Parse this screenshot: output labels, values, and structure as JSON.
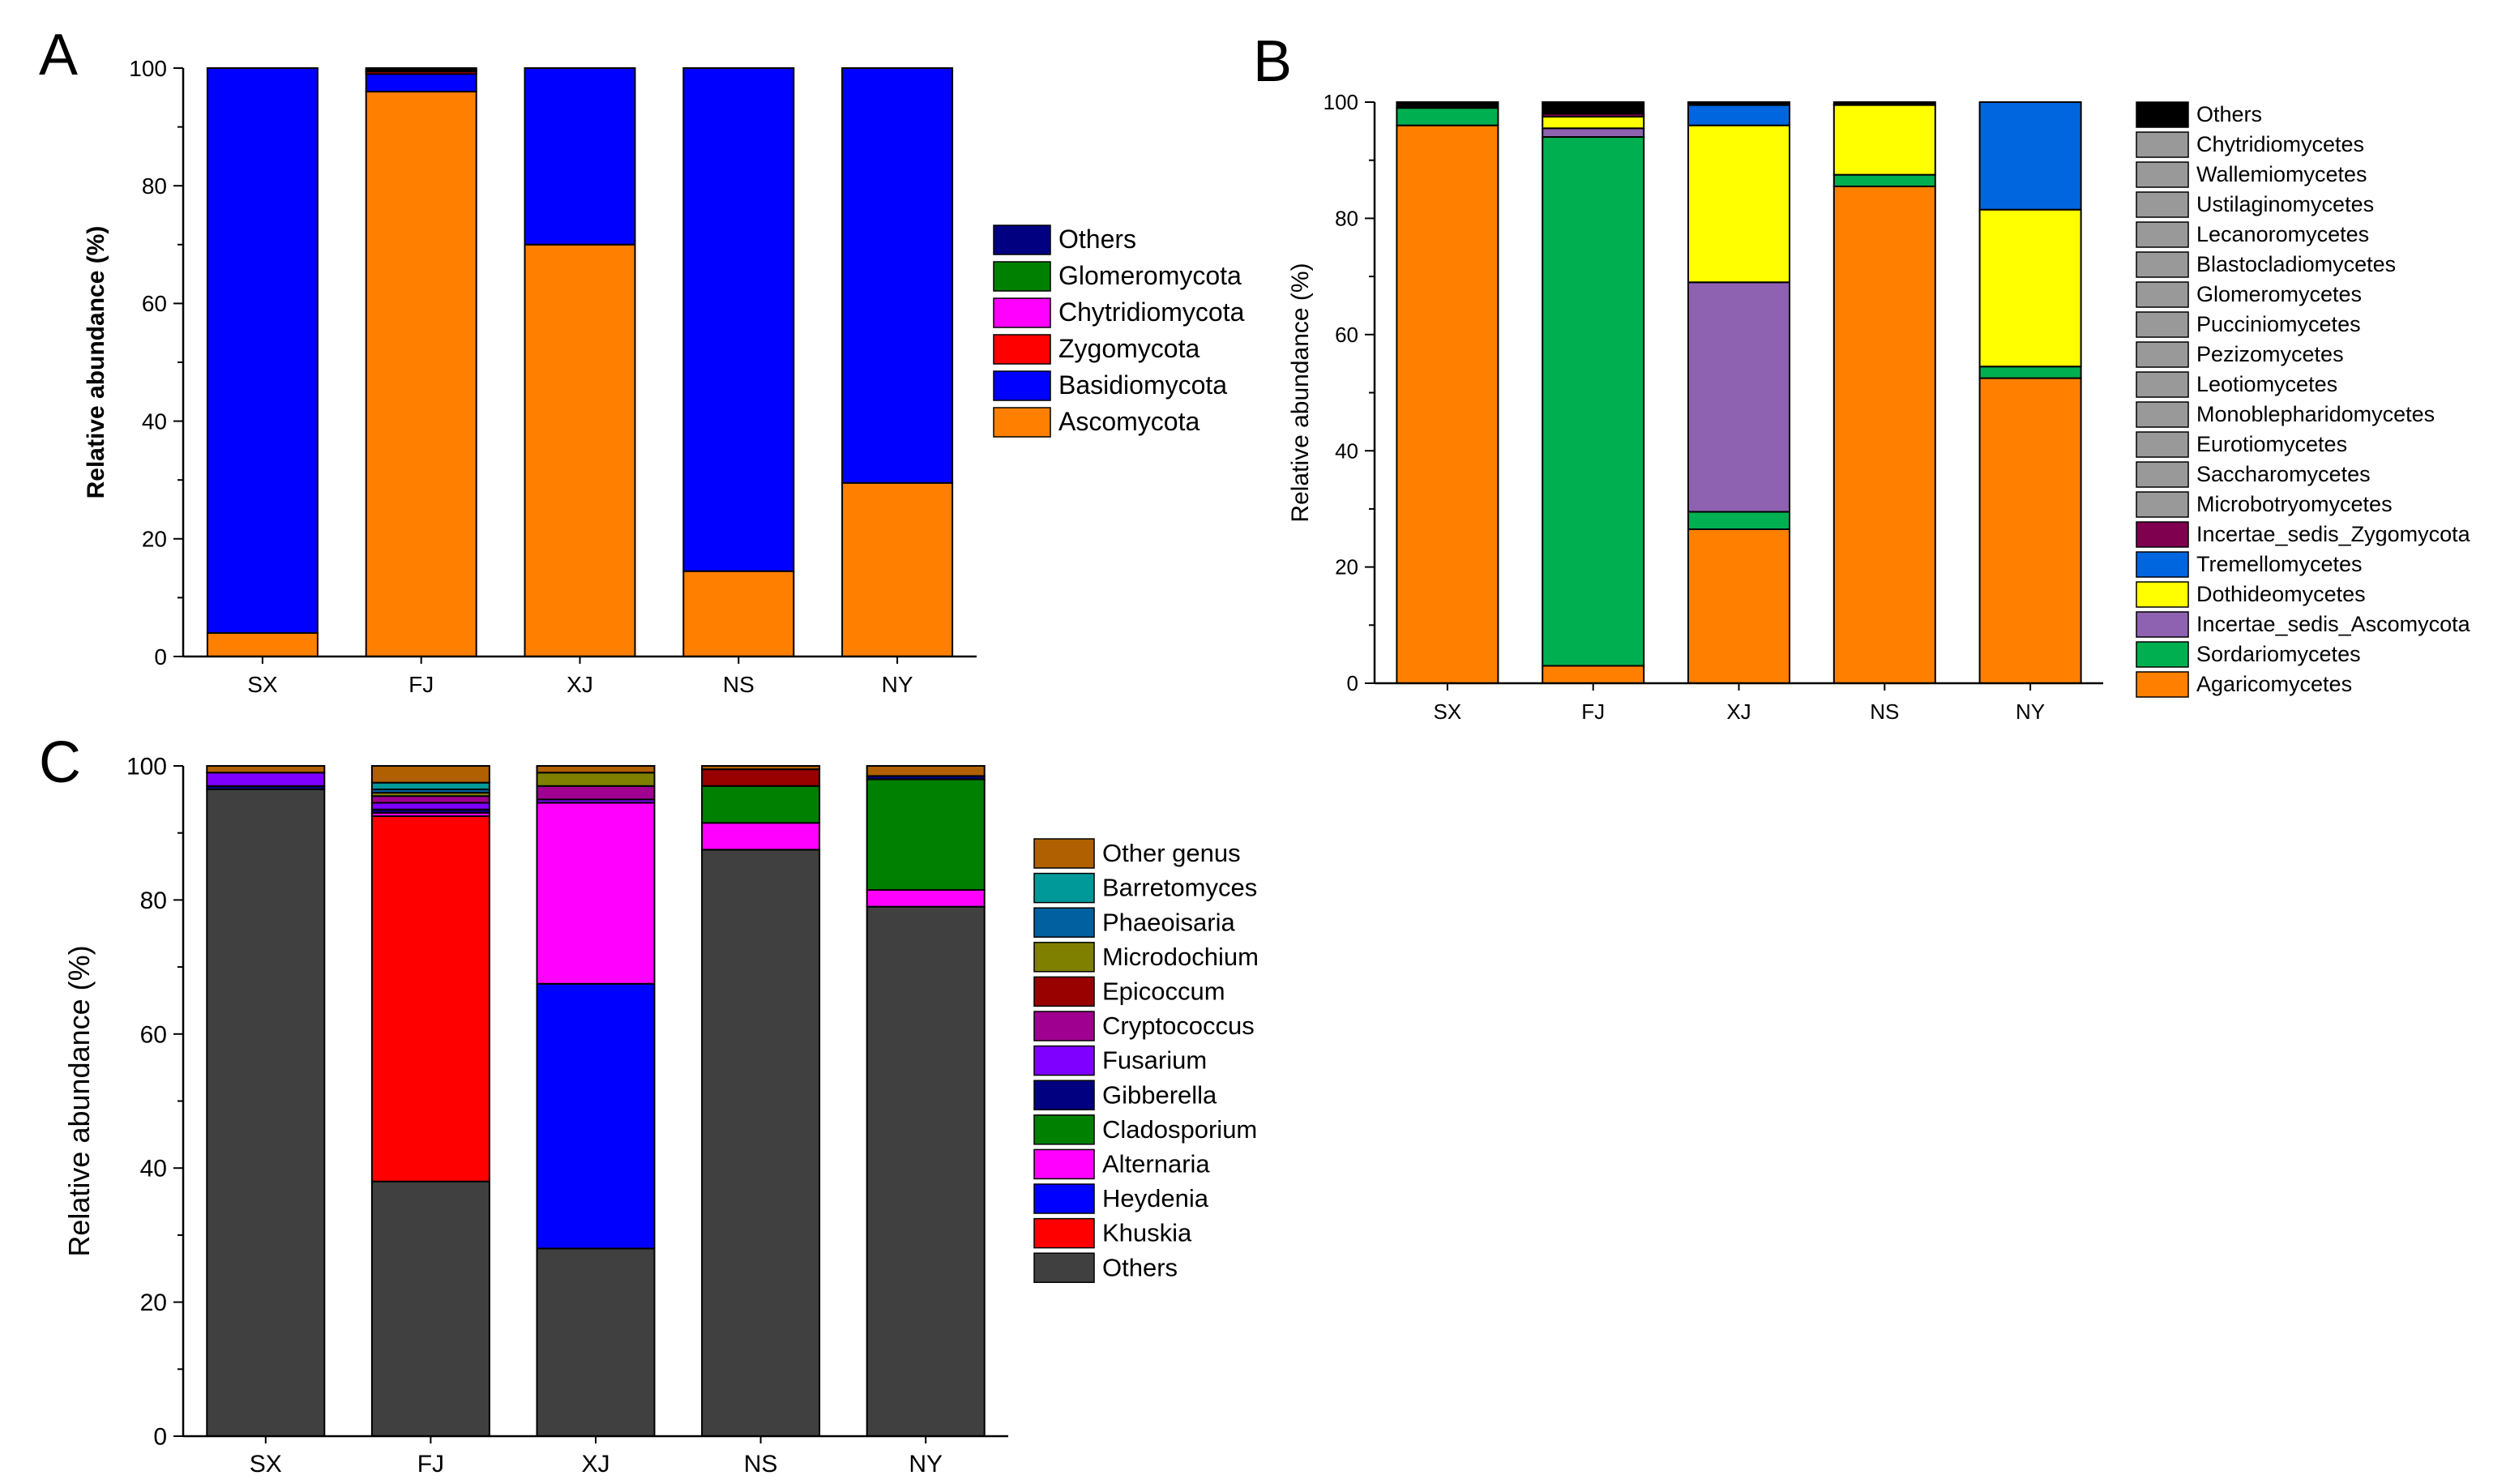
{
  "chart_data": [
    {
      "type": "bar",
      "stacked": true,
      "panel_label": "A",
      "title": "",
      "xlabel": "",
      "ylabel": "Relative abundance (%)",
      "ylim": [
        0,
        100
      ],
      "yticks": [
        0,
        20,
        40,
        60,
        80,
        100
      ],
      "categories": [
        "SX",
        "FJ",
        "XJ",
        "NS",
        "NY"
      ],
      "legend_order": [
        "Others",
        "Glomeromycota",
        "Chytridiomycota",
        "Zygomycota",
        "Basidiomycota",
        "Ascomycota"
      ],
      "series": [
        {
          "name": "Ascomycota",
          "color": "#FF8000",
          "values": [
            4,
            96,
            70,
            14.5,
            29.5
          ]
        },
        {
          "name": "Basidiomycota",
          "color": "#0000FF",
          "values": [
            96,
            3,
            30,
            85.5,
            70.5
          ]
        },
        {
          "name": "Zygomycota",
          "color": "#FF0000",
          "values": [
            0,
            0.4,
            0,
            0,
            0
          ]
        },
        {
          "name": "Chytridiomycota",
          "color": "#FF00FF",
          "values": [
            0,
            0.2,
            0,
            0,
            0
          ]
        },
        {
          "name": "Glomeromycota",
          "color": "#008000",
          "values": [
            0,
            0.2,
            0,
            0,
            0
          ]
        },
        {
          "name": "Others",
          "color": "#000080",
          "values": [
            0,
            0.2,
            0,
            0,
            0
          ]
        }
      ]
    },
    {
      "type": "bar",
      "stacked": true,
      "panel_label": "B",
      "title": "",
      "xlabel": "",
      "ylabel": "Relative abundance (%)",
      "ylim": [
        0,
        100
      ],
      "yticks": [
        0,
        20,
        40,
        60,
        80,
        100
      ],
      "categories": [
        "SX",
        "FJ",
        "XJ",
        "NS",
        "NY"
      ],
      "legend_order": [
        "Others",
        "Chytridiomycetes",
        "Wallemiomycetes",
        "Ustilaginomycetes",
        "Lecanoromycetes",
        "Blastocladiomycetes",
        "Glomeromycetes",
        "Pucciniomycetes",
        "Pezizomycetes",
        "Leotiomycetes",
        "Monoblepharidomycetes",
        "Eurotiomycetes",
        "Saccharomycetes",
        "Microbotryomycetes",
        "Incertae_sedis_Zygomycota",
        "Tremellomycetes",
        "Dothideomycetes",
        "Incertae_sedis_Ascomycota",
        "Sordariomycetes",
        "Agaricomycetes"
      ],
      "series": [
        {
          "name": "Agaricomycetes",
          "color": "#FF8000",
          "values": [
            96,
            3,
            26.5,
            85.5,
            52.5
          ]
        },
        {
          "name": "Sordariomycetes",
          "color": "#00B050",
          "values": [
            3,
            91,
            3,
            2,
            2
          ]
        },
        {
          "name": "Incertae_sedis_Ascomycota",
          "color": "#8E62B0",
          "values": [
            0,
            1.5,
            39.5,
            0,
            0
          ]
        },
        {
          "name": "Dothideomycetes",
          "color": "#FFFF00",
          "values": [
            0,
            2,
            27,
            12,
            27
          ]
        },
        {
          "name": "Tremellomycetes",
          "color": "#0066E0",
          "values": [
            0,
            0,
            3.5,
            0,
            18.5
          ]
        },
        {
          "name": "Incertae_sedis_Zygomycota",
          "color": "#800050",
          "values": [
            0,
            0.5,
            0,
            0,
            0
          ]
        },
        {
          "name": "Others",
          "color": "#000000",
          "values": [
            1,
            2,
            0.5,
            0.5,
            0
          ]
        }
      ]
    },
    {
      "type": "bar",
      "stacked": true,
      "panel_label": "C",
      "title": "",
      "xlabel": "",
      "ylabel": "Relative abundance (%)",
      "ylim": [
        0,
        100
      ],
      "yticks": [
        0,
        20,
        40,
        60,
        80,
        100
      ],
      "categories": [
        "SX",
        "FJ",
        "XJ",
        "NS",
        "NY"
      ],
      "legend_order": [
        "Other genus",
        "Barretomyces",
        "Phaeoisaria",
        "Microdochium",
        "Epicoccum",
        "Cryptococcus",
        "Fusarium",
        "Gibberella",
        "Cladosporium",
        "Alternaria",
        "Heydenia",
        "Khuskia",
        "Others"
      ],
      "series": [
        {
          "name": "Others",
          "color": "#404040",
          "values": [
            96.5,
            38,
            28,
            87.5,
            79
          ]
        },
        {
          "name": "Khuskia",
          "color": "#FF0000",
          "values": [
            0,
            54.5,
            0,
            0,
            0
          ]
        },
        {
          "name": "Heydenia",
          "color": "#0000FF",
          "values": [
            0,
            0,
            39.5,
            0,
            0
          ]
        },
        {
          "name": "Alternaria",
          "color": "#FF00FF",
          "values": [
            0,
            0.5,
            27,
            4,
            2.5
          ]
        },
        {
          "name": "Cladosporium",
          "color": "#008000",
          "values": [
            0,
            0,
            0,
            5.5,
            16.5
          ]
        },
        {
          "name": "Gibberella",
          "color": "#000080",
          "values": [
            0.5,
            0.5,
            0,
            0,
            0.5
          ]
        },
        {
          "name": "Fusarium",
          "color": "#8000FF",
          "values": [
            2,
            1,
            0.5,
            0,
            0
          ]
        },
        {
          "name": "Cryptococcus",
          "color": "#A0008F",
          "values": [
            0,
            1,
            2,
            0,
            0
          ]
        },
        {
          "name": "Epicoccum",
          "color": "#990000",
          "values": [
            0,
            0,
            0,
            2.5,
            0
          ]
        },
        {
          "name": "Microdochium",
          "color": "#808000",
          "values": [
            0,
            0.5,
            2,
            0,
            0
          ]
        },
        {
          "name": "Phaeoisaria",
          "color": "#0060A0",
          "values": [
            0,
            0.5,
            0,
            0,
            0
          ]
        },
        {
          "name": "Barretomyces",
          "color": "#009999",
          "values": [
            0,
            1,
            0,
            0,
            0
          ]
        },
        {
          "name": "Other genus",
          "color": "#B06000",
          "values": [
            1,
            2.5,
            1,
            0.5,
            1.5
          ]
        }
      ]
    }
  ]
}
